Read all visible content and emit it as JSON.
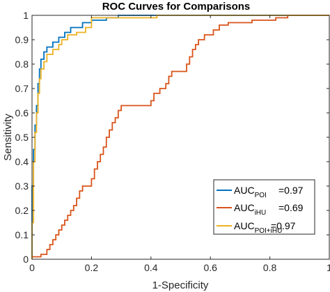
{
  "chart_data": {
    "type": "line",
    "title": "ROC Curves for Comparisons",
    "xlabel": "1-Specificity",
    "ylabel": "Sensitivity",
    "xlim": [
      0,
      1
    ],
    "ylim": [
      0,
      1
    ],
    "xticks": [
      "0",
      "0.2",
      "0.4",
      "0.6",
      "0.8",
      "1"
    ],
    "yticks": [
      "0",
      "0.1",
      "0.2",
      "0.3",
      "0.4",
      "0.5",
      "0.6",
      "0.7",
      "0.8",
      "0.9",
      "1"
    ],
    "grid": false,
    "legend_position": "bottom-right",
    "series": [
      {
        "legend_main": "AUC",
        "legend_sub": "POI",
        "legend_value": "=0.97",
        "color": "#0072BD",
        "points": [
          [
            0,
            0
          ],
          [
            0,
            0.3
          ],
          [
            0.005,
            0.3
          ],
          [
            0.005,
            0.45
          ],
          [
            0.01,
            0.45
          ],
          [
            0.01,
            0.55
          ],
          [
            0.015,
            0.55
          ],
          [
            0.015,
            0.63
          ],
          [
            0.02,
            0.63
          ],
          [
            0.02,
            0.72
          ],
          [
            0.025,
            0.72
          ],
          [
            0.025,
            0.78
          ],
          [
            0.03,
            0.78
          ],
          [
            0.03,
            0.82
          ],
          [
            0.04,
            0.82
          ],
          [
            0.04,
            0.85
          ],
          [
            0.05,
            0.85
          ],
          [
            0.05,
            0.87
          ],
          [
            0.07,
            0.87
          ],
          [
            0.07,
            0.89
          ],
          [
            0.09,
            0.89
          ],
          [
            0.09,
            0.91
          ],
          [
            0.11,
            0.91
          ],
          [
            0.11,
            0.93
          ],
          [
            0.13,
            0.93
          ],
          [
            0.13,
            0.95
          ],
          [
            0.17,
            0.95
          ],
          [
            0.17,
            0.97
          ],
          [
            0.2,
            0.97
          ],
          [
            0.2,
            0.98
          ],
          [
            0.25,
            0.98
          ],
          [
            0.25,
            0.99
          ],
          [
            0.29,
            0.99
          ],
          [
            0.29,
            1.0
          ],
          [
            1.0,
            1.0
          ]
        ]
      },
      {
        "legend_main": "AUC",
        "legend_sub": "iHU",
        "legend_value": "=0.69",
        "color": "#D95319",
        "points": [
          [
            0,
            0
          ],
          [
            0,
            0.01
          ],
          [
            0.03,
            0.01
          ],
          [
            0.03,
            0.02
          ],
          [
            0.05,
            0.02
          ],
          [
            0.05,
            0.04
          ],
          [
            0.06,
            0.04
          ],
          [
            0.06,
            0.06
          ],
          [
            0.07,
            0.06
          ],
          [
            0.07,
            0.08
          ],
          [
            0.08,
            0.08
          ],
          [
            0.08,
            0.1
          ],
          [
            0.09,
            0.1
          ],
          [
            0.09,
            0.12
          ],
          [
            0.1,
            0.12
          ],
          [
            0.1,
            0.14
          ],
          [
            0.11,
            0.14
          ],
          [
            0.11,
            0.16
          ],
          [
            0.12,
            0.16
          ],
          [
            0.12,
            0.18
          ],
          [
            0.13,
            0.18
          ],
          [
            0.13,
            0.2
          ],
          [
            0.14,
            0.2
          ],
          [
            0.14,
            0.22
          ],
          [
            0.15,
            0.22
          ],
          [
            0.15,
            0.25
          ],
          [
            0.16,
            0.25
          ],
          [
            0.16,
            0.28
          ],
          [
            0.17,
            0.28
          ],
          [
            0.17,
            0.3
          ],
          [
            0.2,
            0.3
          ],
          [
            0.2,
            0.33
          ],
          [
            0.21,
            0.33
          ],
          [
            0.21,
            0.37
          ],
          [
            0.22,
            0.37
          ],
          [
            0.22,
            0.4
          ],
          [
            0.23,
            0.4
          ],
          [
            0.23,
            0.43
          ],
          [
            0.24,
            0.43
          ],
          [
            0.24,
            0.46
          ],
          [
            0.25,
            0.46
          ],
          [
            0.25,
            0.5
          ],
          [
            0.26,
            0.5
          ],
          [
            0.26,
            0.53
          ],
          [
            0.27,
            0.53
          ],
          [
            0.27,
            0.56
          ],
          [
            0.28,
            0.56
          ],
          [
            0.28,
            0.58
          ],
          [
            0.29,
            0.58
          ],
          [
            0.29,
            0.61
          ],
          [
            0.3,
            0.61
          ],
          [
            0.3,
            0.63
          ],
          [
            0.4,
            0.63
          ],
          [
            0.4,
            0.65
          ],
          [
            0.41,
            0.65
          ],
          [
            0.41,
            0.68
          ],
          [
            0.43,
            0.68
          ],
          [
            0.43,
            0.7
          ],
          [
            0.45,
            0.7
          ],
          [
            0.45,
            0.72
          ],
          [
            0.46,
            0.72
          ],
          [
            0.46,
            0.75
          ],
          [
            0.47,
            0.75
          ],
          [
            0.47,
            0.77
          ],
          [
            0.52,
            0.77
          ],
          [
            0.52,
            0.8
          ],
          [
            0.53,
            0.8
          ],
          [
            0.53,
            0.83
          ],
          [
            0.54,
            0.83
          ],
          [
            0.54,
            0.86
          ],
          [
            0.55,
            0.86
          ],
          [
            0.55,
            0.88
          ],
          [
            0.56,
            0.88
          ],
          [
            0.56,
            0.9
          ],
          [
            0.58,
            0.9
          ],
          [
            0.58,
            0.92
          ],
          [
            0.61,
            0.92
          ],
          [
            0.61,
            0.94
          ],
          [
            0.63,
            0.94
          ],
          [
            0.63,
            0.96
          ],
          [
            0.66,
            0.96
          ],
          [
            0.66,
            0.97
          ],
          [
            0.74,
            0.97
          ],
          [
            0.74,
            0.98
          ],
          [
            0.82,
            0.98
          ],
          [
            0.82,
            0.99
          ],
          [
            0.86,
            0.99
          ],
          [
            0.86,
            1.0
          ],
          [
            1.0,
            1.0
          ]
        ]
      },
      {
        "legend_main": "AUC",
        "legend_sub": "POI+iHU",
        "legend_value": "=0.97",
        "color": "#EDB120",
        "points": [
          [
            0,
            0
          ],
          [
            0,
            0.15
          ],
          [
            0.005,
            0.15
          ],
          [
            0.005,
            0.4
          ],
          [
            0.01,
            0.4
          ],
          [
            0.01,
            0.52
          ],
          [
            0.015,
            0.52
          ],
          [
            0.015,
            0.6
          ],
          [
            0.02,
            0.6
          ],
          [
            0.02,
            0.68
          ],
          [
            0.025,
            0.68
          ],
          [
            0.025,
            0.74
          ],
          [
            0.03,
            0.74
          ],
          [
            0.03,
            0.78
          ],
          [
            0.04,
            0.78
          ],
          [
            0.04,
            0.81
          ],
          [
            0.05,
            0.81
          ],
          [
            0.05,
            0.84
          ],
          [
            0.07,
            0.84
          ],
          [
            0.07,
            0.86
          ],
          [
            0.09,
            0.86
          ],
          [
            0.09,
            0.88
          ],
          [
            0.1,
            0.88
          ],
          [
            0.1,
            0.9
          ],
          [
            0.12,
            0.9
          ],
          [
            0.12,
            0.92
          ],
          [
            0.15,
            0.92
          ],
          [
            0.15,
            0.93
          ],
          [
            0.18,
            0.93
          ],
          [
            0.18,
            0.95
          ],
          [
            0.2,
            0.95
          ],
          [
            0.2,
            0.99
          ],
          [
            0.42,
            0.99
          ],
          [
            0.42,
            1.0
          ],
          [
            1.0,
            1.0
          ]
        ]
      }
    ]
  }
}
